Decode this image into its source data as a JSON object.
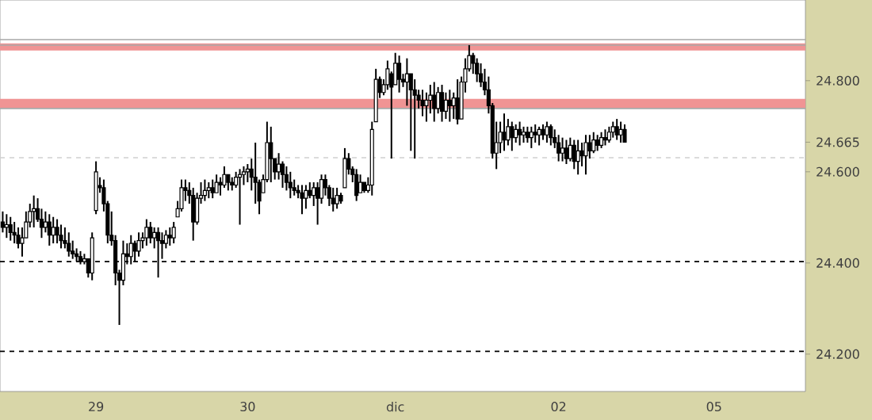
{
  "chart_data": {
    "type": "candlestick",
    "categories": [
      null,
      null,
      null,
      null,
      null,
      null,
      null,
      null,
      null,
      null,
      null,
      null,
      null,
      null,
      null,
      null,
      null,
      null,
      null,
      null,
      null,
      null,
      null,
      null,
      "29",
      null,
      null,
      null,
      null,
      null,
      null,
      null,
      null,
      null,
      null,
      null,
      null,
      null,
      null,
      null,
      null,
      null,
      null,
      null,
      null,
      null,
      null,
      null,
      null,
      null,
      null,
      null,
      null,
      null,
      null,
      null,
      null,
      null,
      null,
      null,
      null,
      null,
      null,
      "30",
      null,
      null,
      null,
      null,
      null,
      null,
      null,
      null,
      null,
      null,
      null,
      null,
      null,
      null,
      null,
      null,
      null,
      null,
      null,
      null,
      null,
      null,
      null,
      null,
      null,
      null,
      null,
      null,
      null,
      null,
      null,
      null,
      null,
      null,
      null,
      null,
      null,
      "dic",
      null,
      null,
      null,
      null,
      null,
      null,
      null,
      null,
      null,
      null,
      null,
      null,
      null,
      null,
      null,
      null,
      null,
      null,
      null,
      null,
      null,
      null,
      null,
      null,
      null,
      null,
      null,
      null,
      null,
      null,
      null,
      null,
      null,
      null,
      null,
      null,
      null,
      null,
      null,
      null,
      null,
      "02",
      null,
      null,
      null,
      null,
      null,
      null,
      null,
      null,
      null,
      null,
      null,
      null,
      null,
      null,
      null,
      null,
      null,
      null,
      null,
      null,
      null,
      null,
      null,
      null,
      null,
      null,
      null,
      null,
      null,
      null,
      null,
      null,
      null,
      null,
      null,
      null,
      null,
      null,
      null,
      "05",
      null,
      null,
      null,
      null,
      null,
      null,
      null,
      null,
      null,
      null,
      null,
      null,
      null,
      null,
      null,
      null,
      null,
      null,
      null,
      null,
      null,
      null,
      null
    ],
    "ohlc": [
      [
        24.49,
        24.513,
        24.467,
        24.478
      ],
      [
        24.478,
        24.507,
        24.455,
        24.484
      ],
      [
        24.484,
        24.501,
        24.449,
        24.467
      ],
      [
        24.467,
        24.49,
        24.443,
        24.461
      ],
      [
        24.461,
        24.478,
        24.432,
        24.443
      ],
      [
        24.443,
        24.478,
        24.414,
        24.455
      ],
      [
        24.455,
        24.513,
        24.455,
        24.49
      ],
      [
        24.49,
        24.53,
        24.478,
        24.513
      ],
      [
        24.513,
        24.548,
        24.478,
        24.519
      ],
      [
        24.519,
        24.542,
        24.49,
        24.496
      ],
      [
        24.496,
        24.519,
        24.455,
        24.478
      ],
      [
        24.478,
        24.513,
        24.467,
        24.49
      ],
      [
        24.49,
        24.507,
        24.438,
        24.461
      ],
      [
        24.461,
        24.501,
        24.443,
        24.478
      ],
      [
        24.478,
        24.496,
        24.443,
        24.461
      ],
      [
        24.461,
        24.484,
        24.432,
        24.449
      ],
      [
        24.449,
        24.478,
        24.432,
        24.443
      ],
      [
        24.443,
        24.467,
        24.414,
        24.426
      ],
      [
        24.426,
        24.449,
        24.409,
        24.42
      ],
      [
        24.42,
        24.432,
        24.403,
        24.414
      ],
      [
        24.414,
        24.426,
        24.397,
        24.403
      ],
      [
        24.403,
        24.42,
        24.397,
        24.409
      ],
      [
        24.409,
        24.409,
        24.368,
        24.378
      ],
      [
        24.378,
        24.467,
        24.362,
        24.455
      ],
      [
        24.515,
        24.623,
        24.507,
        24.6
      ],
      [
        24.57,
        24.588,
        24.554,
        24.565
      ],
      [
        24.565,
        24.583,
        24.513,
        24.53
      ],
      [
        24.53,
        24.536,
        24.443,
        24.461
      ],
      [
        24.461,
        24.513,
        24.438,
        24.449
      ],
      [
        24.449,
        24.461,
        24.351,
        24.378
      ],
      [
        24.378,
        24.385,
        24.264,
        24.362
      ],
      [
        24.362,
        24.449,
        24.351,
        24.42
      ],
      [
        24.42,
        24.443,
        24.397,
        24.414
      ],
      [
        24.414,
        24.461,
        24.397,
        24.443
      ],
      [
        24.443,
        24.449,
        24.403,
        24.426
      ],
      [
        24.426,
        24.467,
        24.414,
        24.449
      ],
      [
        24.449,
        24.467,
        24.432,
        24.455
      ],
      [
        24.455,
        24.496,
        24.438,
        24.478
      ],
      [
        24.478,
        24.49,
        24.443,
        24.455
      ],
      [
        24.455,
        24.478,
        24.432,
        24.467
      ],
      [
        24.467,
        24.478,
        24.368,
        24.449
      ],
      [
        24.449,
        24.467,
        24.409,
        24.443
      ],
      [
        24.443,
        24.472,
        24.432,
        24.461
      ],
      [
        24.461,
        24.478,
        24.438,
        24.455
      ],
      [
        24.455,
        24.49,
        24.443,
        24.478
      ],
      [
        24.501,
        24.536,
        24.501,
        24.519
      ],
      [
        24.519,
        24.583,
        24.513,
        24.565
      ],
      [
        24.565,
        24.583,
        24.536,
        24.559
      ],
      [
        24.559,
        24.577,
        24.53,
        24.548
      ],
      [
        24.548,
        24.565,
        24.449,
        24.49
      ],
      [
        24.49,
        24.554,
        24.484,
        24.542
      ],
      [
        24.542,
        24.577,
        24.53,
        24.548
      ],
      [
        24.548,
        24.583,
        24.536,
        24.559
      ],
      [
        24.559,
        24.577,
        24.542,
        24.565
      ],
      [
        24.565,
        24.583,
        24.542,
        24.554
      ],
      [
        24.554,
        24.594,
        24.554,
        24.577
      ],
      [
        24.577,
        24.588,
        24.548,
        24.571
      ],
      [
        24.571,
        24.612,
        24.565,
        24.594
      ],
      [
        24.594,
        24.594,
        24.559,
        24.577
      ],
      [
        24.577,
        24.588,
        24.559,
        24.571
      ],
      [
        24.571,
        24.6,
        24.565,
        24.588
      ],
      [
        24.588,
        24.606,
        24.484,
        24.594
      ],
      [
        24.594,
        24.612,
        24.571,
        24.6
      ],
      [
        24.6,
        24.617,
        24.577,
        24.606
      ],
      [
        24.606,
        24.629,
        24.559,
        24.588
      ],
      [
        24.588,
        24.664,
        24.53,
        24.577
      ],
      [
        24.577,
        24.583,
        24.507,
        24.536
      ],
      [
        24.554,
        24.594,
        24.554,
        24.583
      ],
      [
        24.583,
        24.71,
        24.577,
        24.664
      ],
      [
        24.664,
        24.699,
        24.577,
        24.629
      ],
      [
        24.629,
        24.629,
        24.583,
        24.6
      ],
      [
        24.6,
        24.641,
        24.583,
        24.617
      ],
      [
        24.617,
        24.623,
        24.565,
        24.594
      ],
      [
        24.594,
        24.612,
        24.559,
        24.577
      ],
      [
        24.577,
        24.6,
        24.542,
        24.565
      ],
      [
        24.565,
        24.583,
        24.548,
        24.559
      ],
      [
        24.559,
        24.571,
        24.542,
        24.554
      ],
      [
        24.554,
        24.571,
        24.507,
        24.542
      ],
      [
        24.542,
        24.571,
        24.519,
        24.559
      ],
      [
        24.559,
        24.577,
        24.542,
        24.548
      ],
      [
        24.548,
        24.577,
        24.525,
        24.565
      ],
      [
        24.565,
        24.577,
        24.484,
        24.542
      ],
      [
        24.542,
        24.594,
        24.53,
        24.583
      ],
      [
        24.583,
        24.594,
        24.548,
        24.565
      ],
      [
        24.565,
        24.571,
        24.525,
        24.542
      ],
      [
        24.542,
        24.565,
        24.513,
        24.53
      ],
      [
        24.53,
        24.565,
        24.519,
        24.548
      ],
      [
        24.548,
        24.554,
        24.53,
        24.536
      ],
      [
        24.565,
        24.652,
        24.565,
        24.629
      ],
      [
        24.629,
        24.641,
        24.594,
        24.606
      ],
      [
        24.606,
        24.612,
        24.577,
        24.594
      ],
      [
        24.594,
        24.606,
        24.536,
        24.548
      ],
      [
        24.554,
        24.594,
        24.554,
        24.577
      ],
      [
        24.577,
        24.577,
        24.554,
        24.559
      ],
      [
        24.559,
        24.588,
        24.554,
        24.571
      ],
      [
        24.571,
        24.71,
        24.548,
        24.693
      ],
      [
        24.71,
        24.826,
        24.71,
        24.803
      ],
      [
        24.803,
        24.809,
        24.762,
        24.774
      ],
      [
        24.774,
        24.803,
        24.768,
        24.791
      ],
      [
        24.791,
        24.844,
        24.78,
        24.826
      ],
      [
        24.815,
        24.82,
        24.629,
        24.786
      ],
      [
        24.791,
        24.861,
        24.791,
        24.838
      ],
      [
        24.838,
        24.855,
        24.774,
        24.803
      ],
      [
        24.803,
        24.815,
        24.786,
        24.797
      ],
      [
        24.797,
        24.849,
        24.745,
        24.815
      ],
      [
        24.815,
        24.815,
        24.646,
        24.78
      ],
      [
        24.78,
        24.803,
        24.629,
        24.768
      ],
      [
        24.768,
        24.78,
        24.739,
        24.757
      ],
      [
        24.757,
        24.78,
        24.722,
        24.745
      ],
      [
        24.745,
        24.774,
        24.71,
        24.757
      ],
      [
        24.757,
        24.791,
        24.728,
        24.768
      ],
      [
        24.768,
        24.797,
        24.71,
        24.739
      ],
      [
        24.739,
        24.786,
        24.728,
        24.774
      ],
      [
        24.774,
        24.791,
        24.71,
        24.733
      ],
      [
        24.733,
        24.774,
        24.716,
        24.757
      ],
      [
        24.757,
        24.78,
        24.71,
        24.745
      ],
      [
        24.745,
        24.774,
        24.716,
        24.762
      ],
      [
        24.762,
        24.803,
        24.704,
        24.716
      ],
      [
        24.716,
        24.809,
        24.716,
        24.797
      ],
      [
        24.797,
        24.849,
        24.774,
        24.826
      ],
      [
        24.826,
        24.878,
        24.82,
        24.855
      ],
      [
        24.855,
        24.861,
        24.815,
        24.838
      ],
      [
        24.838,
        24.849,
        24.797,
        24.815
      ],
      [
        24.815,
        24.838,
        24.786,
        24.797
      ],
      [
        24.797,
        24.826,
        24.768,
        24.78
      ],
      [
        24.78,
        24.809,
        24.728,
        24.745
      ],
      [
        24.745,
        24.751,
        24.629,
        24.641
      ],
      [
        24.641,
        24.71,
        24.606,
        24.664
      ],
      [
        24.664,
        24.71,
        24.641,
        24.687
      ],
      [
        24.687,
        24.728,
        24.646,
        24.67
      ],
      [
        24.67,
        24.716,
        24.658,
        24.699
      ],
      [
        24.699,
        24.71,
        24.646,
        24.675
      ],
      [
        24.675,
        24.704,
        24.664,
        24.693
      ],
      [
        24.693,
        24.71,
        24.658,
        24.681
      ],
      [
        24.681,
        24.699,
        24.664,
        24.687
      ],
      [
        24.687,
        24.699,
        24.664,
        24.675
      ],
      [
        24.675,
        24.699,
        24.652,
        24.687
      ],
      [
        24.687,
        24.704,
        24.664,
        24.681
      ],
      [
        24.681,
        24.699,
        24.658,
        24.693
      ],
      [
        24.693,
        24.704,
        24.67,
        24.681
      ],
      [
        24.681,
        24.71,
        24.664,
        24.699
      ],
      [
        24.699,
        24.704,
        24.658,
        24.675
      ],
      [
        24.675,
        24.693,
        24.652,
        24.664
      ],
      [
        24.664,
        24.681,
        24.623,
        24.641
      ],
      [
        24.641,
        24.675,
        24.623,
        24.652
      ],
      [
        24.652,
        24.67,
        24.617,
        24.629
      ],
      [
        24.629,
        24.675,
        24.623,
        24.658
      ],
      [
        24.658,
        24.67,
        24.606,
        24.623
      ],
      [
        24.623,
        24.67,
        24.594,
        24.646
      ],
      [
        24.646,
        24.664,
        24.612,
        24.635
      ],
      [
        24.635,
        24.681,
        24.594,
        24.664
      ],
      [
        24.664,
        24.681,
        24.629,
        24.646
      ],
      [
        24.646,
        24.687,
        24.641,
        24.67
      ],
      [
        24.67,
        24.681,
        24.646,
        24.658
      ],
      [
        24.658,
        24.687,
        24.652,
        24.675
      ],
      [
        24.675,
        24.693,
        24.658,
        24.67
      ],
      [
        24.67,
        24.699,
        24.664,
        24.687
      ],
      [
        24.687,
        24.71,
        24.675,
        24.699
      ],
      [
        24.699,
        24.716,
        24.67,
        24.681
      ],
      [
        24.681,
        24.71,
        24.664,
        24.693
      ],
      [
        24.693,
        24.704,
        24.664,
        24.665
      ],
      null,
      null,
      null,
      null,
      null,
      null,
      null,
      null,
      null,
      null,
      null,
      null,
      null,
      null,
      null,
      null,
      null,
      null,
      null,
      null,
      null,
      null,
      null,
      null,
      null,
      null,
      null,
      null,
      null,
      null,
      null,
      null,
      null,
      null,
      null,
      null,
      null,
      null,
      null,
      null,
      null,
      null,
      null,
      null,
      null,
      null
    ],
    "ylim": [
      24.118,
      24.977
    ],
    "yticks": [
      {
        "value": 24.2,
        "label": "24.200"
      },
      {
        "value": 24.4,
        "label": "24.400"
      },
      {
        "value": 24.6,
        "label": "24.600"
      },
      {
        "value": 24.665,
        "label": "24.665"
      },
      {
        "value": 24.8,
        "label": "24.800"
      }
    ],
    "bands": [
      {
        "axis": "y",
        "from": 24.866,
        "to": 24.882,
        "color": "#f09494"
      },
      {
        "axis": "y",
        "from": 24.739,
        "to": 24.76,
        "color": "#f09494"
      }
    ],
    "ref_lines": [
      {
        "axis": "y",
        "value": 24.89,
        "color": "#a8a8a8",
        "line_style": "solid"
      },
      {
        "axis": "y",
        "value": 24.878,
        "color": "#a8a8a8",
        "line_style": "solid"
      },
      {
        "axis": "y",
        "value": 24.739,
        "color": "#a8a8a8",
        "line_style": "solid"
      },
      {
        "axis": "y",
        "value": 24.631,
        "color": "#d0d0d0",
        "line_style": "dashed"
      },
      {
        "axis": "y",
        "value": 24.403,
        "color": "#000000",
        "line_style": "dashed"
      },
      {
        "axis": "y",
        "value": 24.206,
        "color": "#000000",
        "line_style": "dashed"
      }
    ],
    "grid": false
  }
}
